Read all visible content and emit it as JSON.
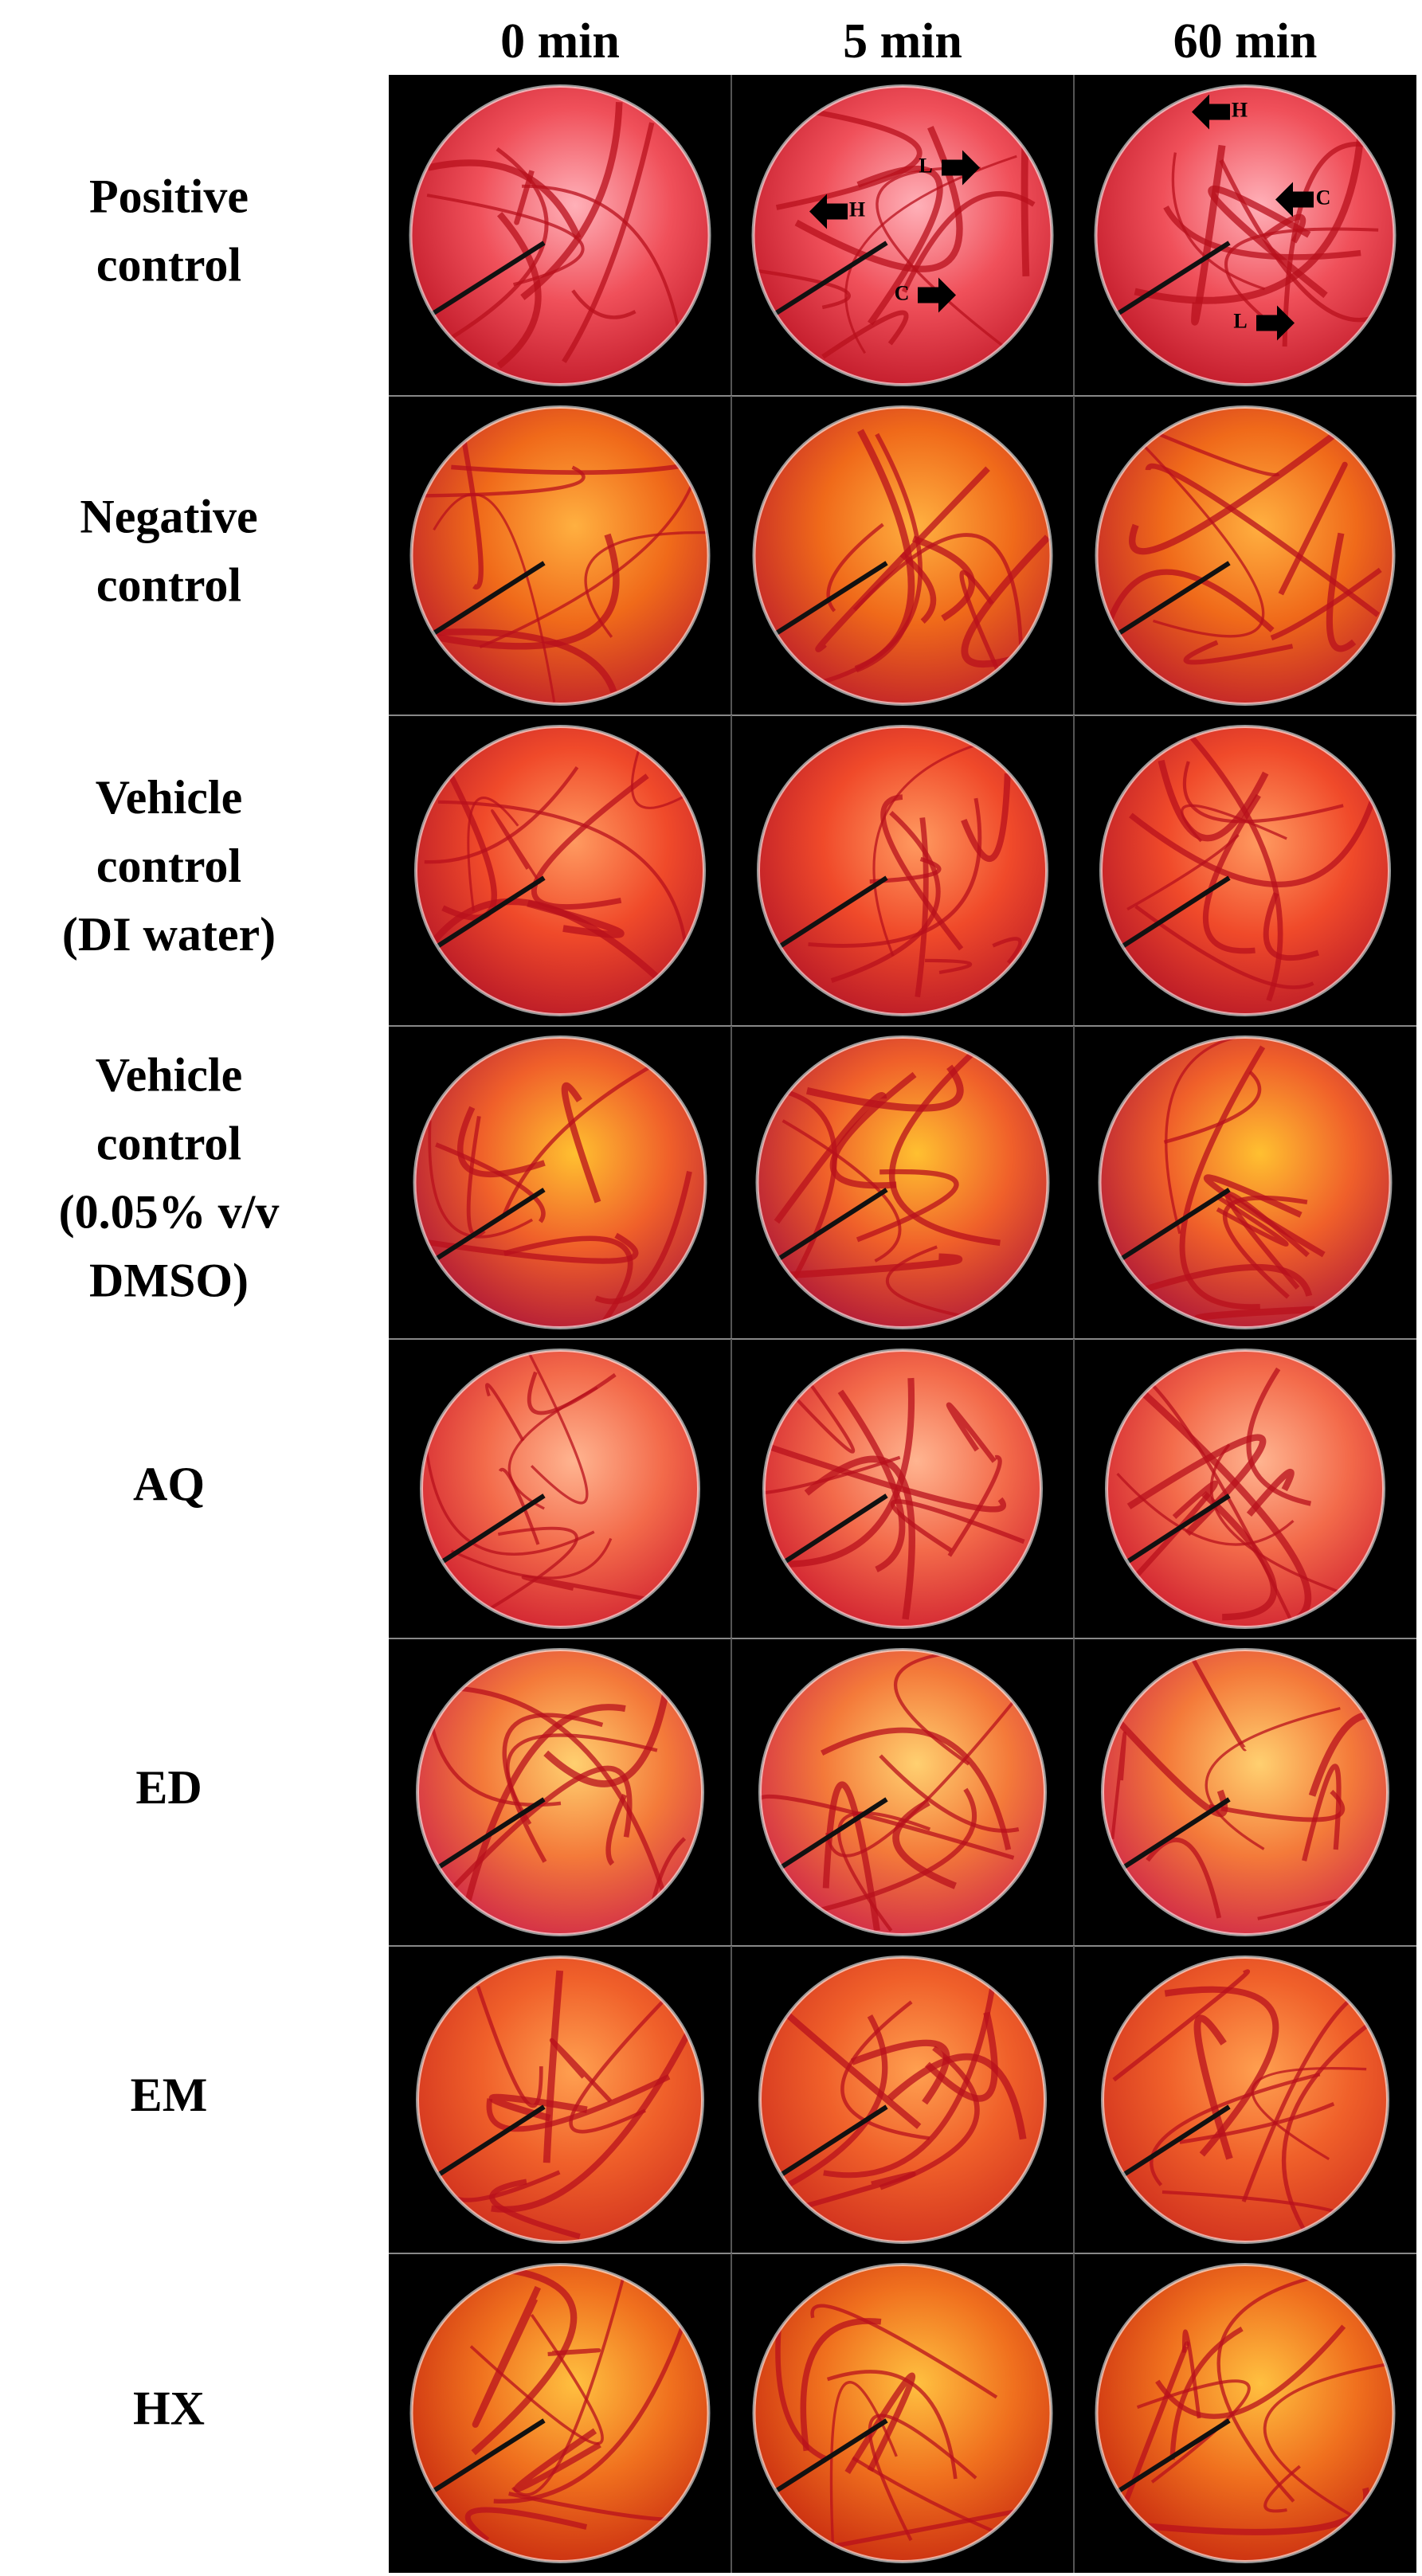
{
  "columns": [
    "0 min",
    "5 min",
    "60 min"
  ],
  "rows": [
    {
      "label": [
        "Positive",
        "control"
      ],
      "annotations": [
        [],
        [
          "H",
          "L",
          "C"
        ],
        [
          "H",
          "C",
          "L"
        ]
      ]
    },
    {
      "label": [
        "Negative",
        "control"
      ]
    },
    {
      "label": [
        "Vehicle",
        "control",
        "(DI water)"
      ]
    },
    {
      "label": [
        "Vehicle",
        "control",
        "(0.05% v/v",
        "DMSO)"
      ]
    },
    {
      "label": [
        "AQ"
      ]
    },
    {
      "label": [
        "ED"
      ]
    },
    {
      "label": [
        "EM"
      ]
    },
    {
      "label": [
        "HX"
      ]
    }
  ]
}
